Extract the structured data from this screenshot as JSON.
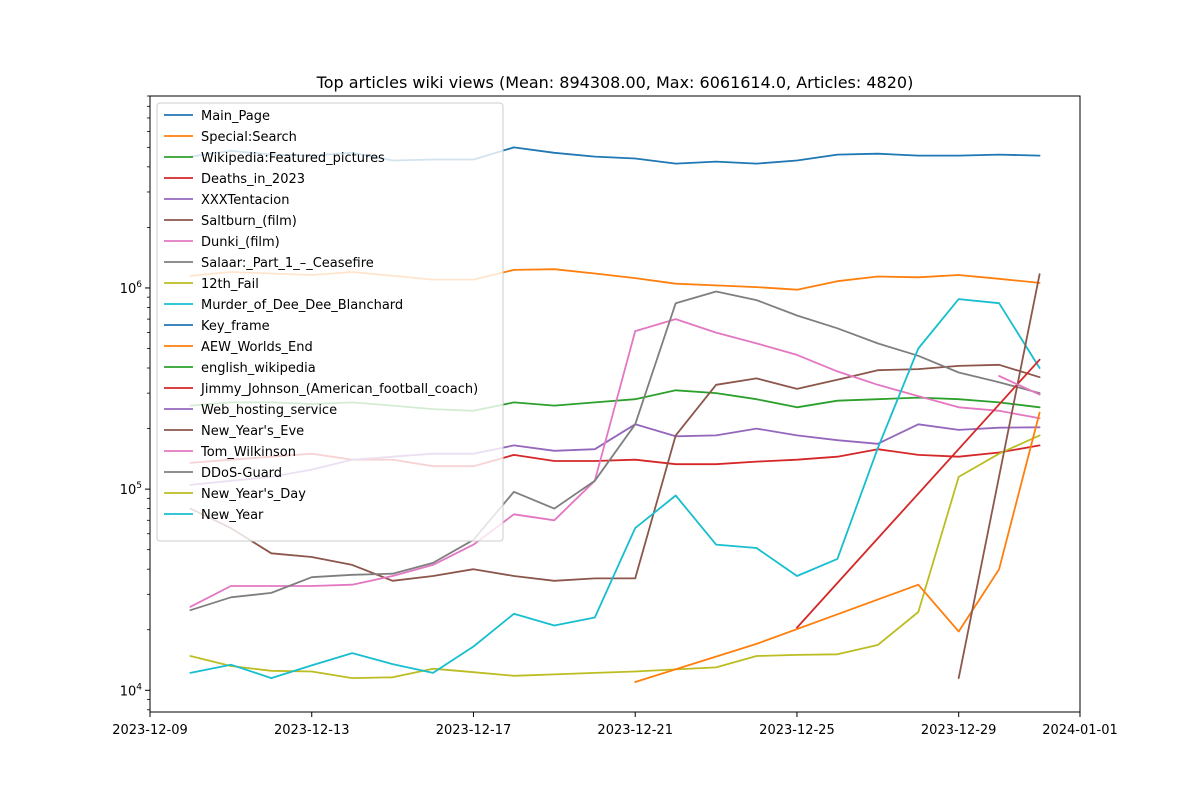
{
  "chart_data": {
    "type": "line",
    "title": "Top articles wiki views (Mean: 894308.00, Max: 6061614.0, Articles: 4820)",
    "xlabel": "",
    "ylabel": "",
    "y_scale": "log",
    "xlim": [
      "2023-12-09",
      "2024-01-01"
    ],
    "ylim": [
      7800,
      9000000
    ],
    "x_ticks": [
      "2023-12-09",
      "2023-12-13",
      "2023-12-17",
      "2023-12-21",
      "2023-12-25",
      "2023-12-29",
      "2024-01-01"
    ],
    "y_ticks": [
      {
        "value": 10000,
        "base": "10",
        "exp": "4"
      },
      {
        "value": 100000,
        "base": "10",
        "exp": "5"
      },
      {
        "value": 1000000,
        "base": "10",
        "exp": "6"
      }
    ],
    "grid": false,
    "legend_position": "upper-left",
    "x": [
      "2023-12-10",
      "2023-12-11",
      "2023-12-12",
      "2023-12-13",
      "2023-12-14",
      "2023-12-15",
      "2023-12-16",
      "2023-12-17",
      "2023-12-18",
      "2023-12-19",
      "2023-12-20",
      "2023-12-21",
      "2023-12-22",
      "2023-12-23",
      "2023-12-24",
      "2023-12-25",
      "2023-12-26",
      "2023-12-27",
      "2023-12-28",
      "2023-12-29",
      "2023-12-30",
      "2023-12-31"
    ],
    "series": [
      {
        "name": "Main_Page",
        "color": "#1f77b4",
        "values": [
          4500000,
          4800000,
          4600000,
          4550000,
          4700000,
          4300000,
          4350000,
          4350000,
          5000000,
          4700000,
          4500000,
          4400000,
          4150000,
          4250000,
          4150000,
          4300000,
          4600000,
          4650000,
          4550000,
          4550000,
          4600000,
          4550000
        ]
      },
      {
        "name": "Special:Search",
        "color": "#ff7f0e",
        "values": [
          1150000,
          1200000,
          1180000,
          1160000,
          1200000,
          1150000,
          1100000,
          1100000,
          1230000,
          1240000,
          1180000,
          1120000,
          1050000,
          1030000,
          1010000,
          980000,
          1080000,
          1140000,
          1130000,
          1160000,
          1110000,
          1060000
        ]
      },
      {
        "name": "Wikipedia:Featured_pictures",
        "color": "#2ca02c",
        "values": [
          260000,
          270000,
          270000,
          265000,
          270000,
          260000,
          250000,
          245000,
          270000,
          260000,
          270000,
          280000,
          310000,
          300000,
          280000,
          255000,
          275000,
          280000,
          285000,
          280000,
          270000,
          255000
        ]
      },
      {
        "name": "Deaths_in_2023",
        "color": "#d62728",
        "values": [
          135000,
          140000,
          145000,
          150000,
          140000,
          140000,
          130000,
          130000,
          148000,
          138000,
          138000,
          140000,
          133000,
          133000,
          137000,
          140000,
          145000,
          158000,
          148000,
          145000,
          152000,
          165000
        ]
      },
      {
        "name": "XXXTentacion",
        "color": "#9467bd",
        "values": [
          105000,
          110000,
          115000,
          125000,
          140000,
          145000,
          150000,
          150000,
          165000,
          155000,
          158000,
          210000,
          183000,
          185000,
          200000,
          185000,
          175000,
          168000,
          210000,
          197000,
          202000,
          203000
        ]
      },
      {
        "name": "Saltburn_(film)",
        "color": "#8c564b",
        "values": [
          80000,
          64000,
          48000,
          46000,
          42000,
          35000,
          37000,
          40000,
          37000,
          35000,
          36000,
          36000,
          185000,
          330000,
          355000,
          315000,
          350000,
          390000,
          395000,
          410000,
          415000,
          360000
        ]
      },
      {
        "name": "Dunki_(film)",
        "color": "#e377c2",
        "values": [
          26000,
          33000,
          33000,
          33000,
          33500,
          37000,
          42000,
          53000,
          75000,
          70000,
          110000,
          610000,
          700000,
          600000,
          530000,
          465000,
          385000,
          330000,
          290000,
          255000,
          245000,
          225000
        ]
      },
      {
        "name": "Salaar:_Part_1_–_Ceasefire",
        "color": "#7f7f7f",
        "values": [
          25000,
          29000,
          30500,
          36500,
          37500,
          38000,
          43000,
          56000,
          97000,
          80000,
          110000,
          210000,
          840000,
          960000,
          870000,
          730000,
          630000,
          530000,
          460000,
          380000,
          340000,
          300000
        ]
      },
      {
        "name": "12th_Fail",
        "color": "#bcbd22",
        "values": [
          14800,
          13200,
          12500,
          12400,
          11500,
          11600,
          12800,
          12300,
          11800,
          12000,
          12200,
          12400,
          12700,
          13000,
          14800,
          15000,
          15100,
          16800,
          24500,
          115000,
          150000,
          185000
        ]
      },
      {
        "name": "Murder_of_Dee_Dee_Blanchard",
        "color": "#17becf",
        "values": [
          12200,
          13400,
          11500,
          13300,
          15300,
          13500,
          12200,
          16500,
          24000,
          21000,
          23000,
          64000,
          93000,
          53000,
          51000,
          37000,
          45000,
          160000,
          500000,
          880000,
          840000,
          400000
        ]
      },
      {
        "name": "Key_frame",
        "color": "#1f77b4",
        "values": [
          null,
          null,
          null,
          null,
          null,
          null,
          null,
          null,
          null,
          null,
          null,
          null,
          null,
          null,
          null,
          null,
          null,
          null,
          null,
          null,
          null,
          null
        ]
      },
      {
        "name": "AEW_Worlds_End",
        "color": "#ff7f0e",
        "values": [
          null,
          null,
          null,
          null,
          null,
          null,
          null,
          null,
          null,
          null,
          null,
          11000,
          null,
          null,
          17000,
          null,
          null,
          null,
          33500,
          19600,
          40000,
          240000
        ]
      },
      {
        "name": "english_wikipedia",
        "color": "#2ca02c",
        "values": [
          null,
          null,
          null,
          null,
          null,
          null,
          null,
          null,
          null,
          null,
          null,
          null,
          null,
          null,
          null,
          null,
          null,
          null,
          null,
          null,
          null,
          null
        ]
      },
      {
        "name": "Jimmy_Johnson_(American_football_coach)",
        "color": "#d62728",
        "values": [
          null,
          null,
          null,
          null,
          null,
          null,
          null,
          null,
          null,
          null,
          null,
          null,
          null,
          null,
          null,
          20500,
          null,
          null,
          null,
          null,
          null,
          440000
        ]
      },
      {
        "name": "Web_hosting_service",
        "color": "#9467bd",
        "values": [
          null,
          null,
          null,
          null,
          null,
          null,
          null,
          null,
          null,
          null,
          null,
          null,
          null,
          null,
          null,
          null,
          null,
          null,
          null,
          null,
          null,
          null
        ]
      },
      {
        "name": "New_Year's_Eve",
        "color": "#8c564b",
        "values": [
          null,
          null,
          null,
          null,
          null,
          null,
          null,
          null,
          null,
          null,
          null,
          null,
          null,
          null,
          null,
          null,
          null,
          null,
          null,
          11500,
          null,
          1170000
        ]
      },
      {
        "name": "Tom_Wilkinson",
        "color": "#e377c2",
        "values": [
          null,
          null,
          null,
          null,
          null,
          null,
          null,
          null,
          null,
          null,
          null,
          null,
          null,
          null,
          null,
          null,
          null,
          null,
          null,
          null,
          365000,
          295000
        ]
      },
      {
        "name": "DDoS-Guard",
        "color": "#7f7f7f",
        "values": [
          null,
          null,
          null,
          null,
          null,
          null,
          null,
          null,
          null,
          null,
          null,
          null,
          null,
          null,
          null,
          null,
          null,
          null,
          null,
          null,
          null,
          null
        ]
      },
      {
        "name": "New_Year's_Day",
        "color": "#bcbd22",
        "values": [
          null,
          null,
          null,
          null,
          null,
          null,
          null,
          null,
          null,
          null,
          null,
          null,
          null,
          null,
          null,
          null,
          null,
          null,
          null,
          null,
          null,
          null
        ]
      },
      {
        "name": "New_Year",
        "color": "#17becf",
        "values": [
          null,
          null,
          null,
          null,
          null,
          null,
          null,
          null,
          null,
          null,
          null,
          null,
          null,
          null,
          null,
          null,
          null,
          null,
          null,
          null,
          null,
          null
        ]
      }
    ]
  }
}
